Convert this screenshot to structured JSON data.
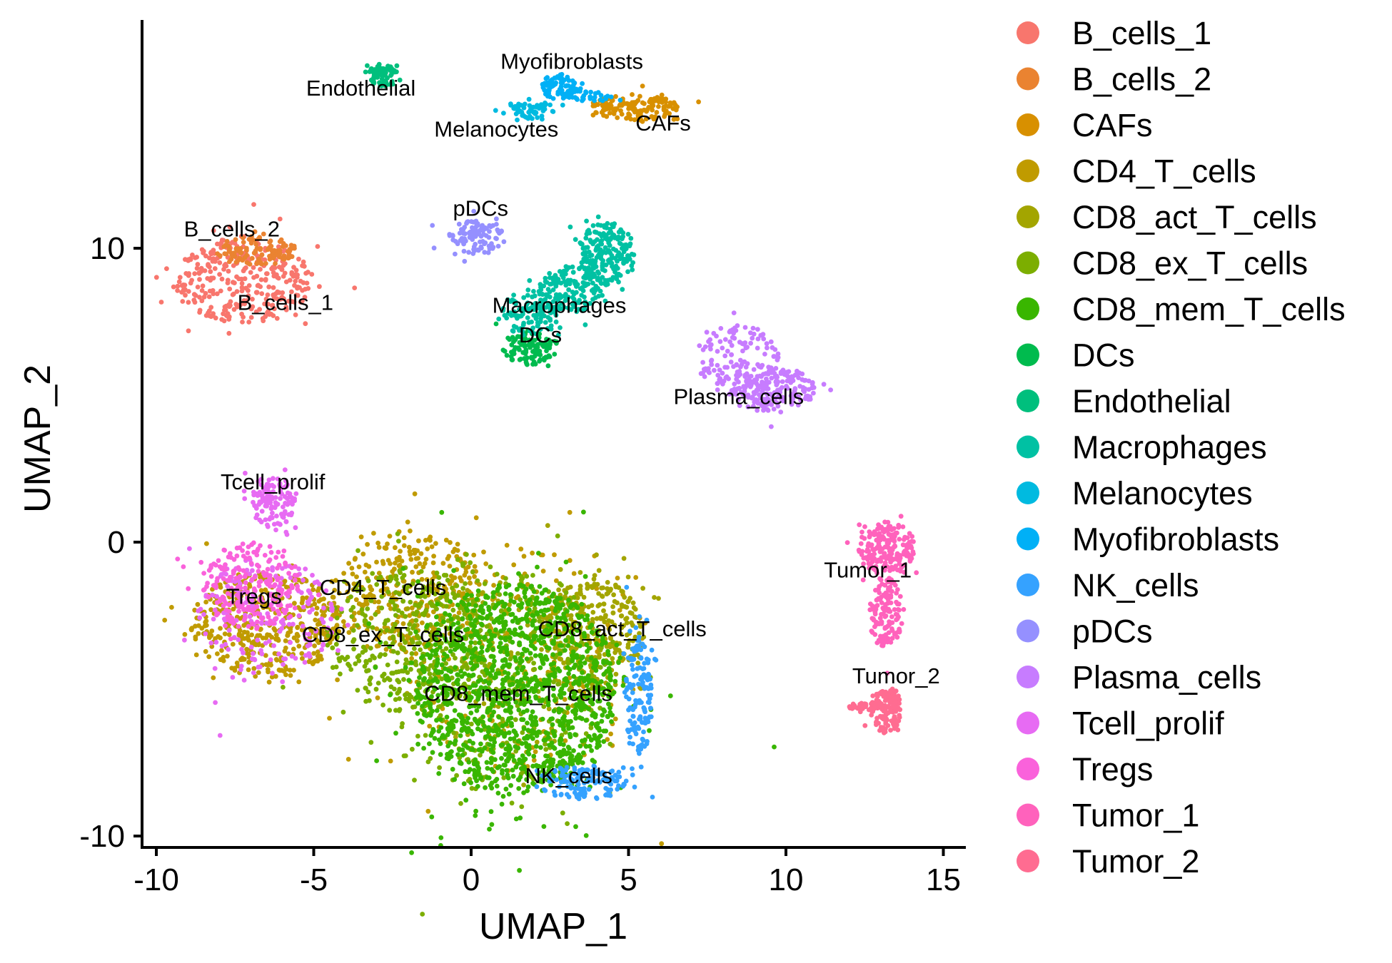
{
  "chart_data": {
    "type": "scatter",
    "xlabel": "UMAP_1",
    "ylabel": "UMAP_2",
    "xlim": [
      -10.5,
      15.8
    ],
    "ylim": [
      -10.4,
      17.7
    ],
    "x_ticks": [
      {
        "value": -10,
        "label": "-10"
      },
      {
        "value": -5,
        "label": "-5"
      },
      {
        "value": 0,
        "label": "0"
      },
      {
        "value": 5,
        "label": "5"
      },
      {
        "value": 10,
        "label": "10"
      },
      {
        "value": 15,
        "label": "15"
      }
    ],
    "y_ticks": [
      {
        "value": -10,
        "label": "-10"
      },
      {
        "value": 0,
        "label": "0"
      },
      {
        "value": 10,
        "label": "10"
      }
    ],
    "grid": false,
    "legend_position": "right",
    "series": [
      {
        "name": "B_cells_1",
        "color": "#F8766D",
        "label_pos": [
          -5.9,
          7.9
        ],
        "n": 340,
        "regions": [
          {
            "cx": -7.2,
            "cy": 8.9,
            "rx": 2.1,
            "ry": 1.5,
            "w": 1.0
          }
        ]
      },
      {
        "name": "B_cells_2",
        "color": "#EA8331",
        "label_pos": [
          -7.6,
          10.4
        ],
        "n": 110,
        "regions": [
          {
            "cx": -6.8,
            "cy": 9.9,
            "rx": 1.3,
            "ry": 0.5,
            "w": 1.0
          }
        ]
      },
      {
        "name": "CAFs",
        "color": "#D89000",
        "label_pos": [
          6.1,
          14.0
        ],
        "n": 160,
        "regions": [
          {
            "cx": 5.2,
            "cy": 14.8,
            "rx": 1.4,
            "ry": 0.45,
            "w": 1.0
          }
        ]
      },
      {
        "name": "CD4_T_cells",
        "color": "#C09B00",
        "label_pos": [
          -2.8,
          -1.8
        ],
        "n": 950,
        "regions": [
          {
            "cx": -6.5,
            "cy": -2.8,
            "rx": 2.4,
            "ry": 1.8,
            "w": 0.45
          },
          {
            "cx": -2.0,
            "cy": -1.8,
            "rx": 2.4,
            "ry": 2.2,
            "w": 0.35
          },
          {
            "cx": 1.8,
            "cy": -4.0,
            "rx": 3.8,
            "ry": 4.3,
            "w": 0.2
          }
        ]
      },
      {
        "name": "CD8_act_T_cells",
        "color": "#A3A500",
        "label_pos": [
          4.8,
          -3.2
        ],
        "n": 420,
        "regions": [
          {
            "cx": 3.8,
            "cy": -3.2,
            "rx": 1.7,
            "ry": 2.0,
            "w": 0.7
          },
          {
            "cx": 1.0,
            "cy": -4.5,
            "rx": 3.0,
            "ry": 3.2,
            "w": 0.3
          }
        ]
      },
      {
        "name": "CD8_ex_T_cells",
        "color": "#7CAE00",
        "label_pos": [
          -2.8,
          -3.4
        ],
        "n": 700,
        "regions": [
          {
            "cx": -2.0,
            "cy": -3.3,
            "rx": 2.6,
            "ry": 2.5,
            "w": 0.45
          },
          {
            "cx": 0.8,
            "cy": -4.5,
            "rx": 3.5,
            "ry": 4.0,
            "w": 0.55
          }
        ]
      },
      {
        "name": "CD8_mem_T_cells",
        "color": "#39B600",
        "label_pos": [
          1.5,
          -5.4
        ],
        "n": 1300,
        "regions": [
          {
            "cx": 1.4,
            "cy": -5.0,
            "rx": 3.2,
            "ry": 3.6,
            "w": 1.0
          }
        ]
      },
      {
        "name": "DCs",
        "color": "#00BB4E",
        "label_pos": [
          2.2,
          6.8
        ],
        "n": 110,
        "regions": [
          {
            "cx": 1.8,
            "cy": 6.6,
            "rx": 0.8,
            "ry": 0.6,
            "w": 1.0
          }
        ]
      },
      {
        "name": "Endothelial",
        "color": "#00BF7D",
        "label_pos": [
          -3.5,
          15.2
        ],
        "n": 70,
        "regions": [
          {
            "cx": -2.8,
            "cy": 15.9,
            "rx": 0.45,
            "ry": 0.4,
            "w": 1.0
          }
        ]
      },
      {
        "name": "Macrophages",
        "color": "#00C1A3",
        "label_pos": [
          2.8,
          7.8
        ],
        "n": 460,
        "regions": [
          {
            "cx": 4.3,
            "cy": 9.8,
            "rx": 0.9,
            "ry": 1.1,
            "w": 0.45
          },
          {
            "cx": 3.2,
            "cy": 8.6,
            "rx": 1.0,
            "ry": 0.8,
            "w": 0.3
          },
          {
            "cx": 1.9,
            "cy": 7.8,
            "rx": 0.9,
            "ry": 0.8,
            "w": 0.25
          }
        ]
      },
      {
        "name": "Melanocytes",
        "color": "#00BAE0",
        "label_pos": [
          0.8,
          13.8
        ],
        "n": 60,
        "regions": [
          {
            "cx": 2.0,
            "cy": 14.7,
            "rx": 0.7,
            "ry": 0.3,
            "w": 1.0
          }
        ]
      },
      {
        "name": "Myofibroblasts",
        "color": "#00B0F6",
        "label_pos": [
          3.2,
          16.1
        ],
        "n": 110,
        "regions": [
          {
            "cx": 2.8,
            "cy": 15.5,
            "rx": 0.55,
            "ry": 0.45,
            "w": 0.7
          },
          {
            "cx": 3.7,
            "cy": 15.2,
            "rx": 0.8,
            "ry": 0.25,
            "w": 0.3
          }
        ]
      },
      {
        "name": "NK_cells",
        "color": "#35A2FF",
        "label_pos": [
          3.1,
          -8.2
        ],
        "n": 280,
        "regions": [
          {
            "cx": 5.3,
            "cy": -5.3,
            "rx": 0.45,
            "ry": 2.0,
            "w": 0.5
          },
          {
            "cx": 3.6,
            "cy": -8.2,
            "rx": 1.5,
            "ry": 0.6,
            "w": 0.5
          }
        ]
      },
      {
        "name": "pDCs",
        "color": "#9590FF",
        "label_pos": [
          0.3,
          11.1
        ],
        "n": 110,
        "regions": [
          {
            "cx": 0.2,
            "cy": 10.4,
            "rx": 0.9,
            "ry": 0.6,
            "w": 1.0
          }
        ]
      },
      {
        "name": "Plasma_cells",
        "color": "#C77CFF",
        "label_pos": [
          8.5,
          4.7
        ],
        "n": 330,
        "regions": [
          {
            "cx": 8.5,
            "cy": 6.2,
            "rx": 1.3,
            "ry": 1.2,
            "w": 0.45
          },
          {
            "cx": 9.6,
            "cy": 5.2,
            "rx": 1.3,
            "ry": 0.8,
            "w": 0.55
          }
        ]
      },
      {
        "name": "Tcell_prolif",
        "color": "#E76BF3",
        "label_pos": [
          -6.3,
          1.8
        ],
        "n": 320,
        "regions": [
          {
            "cx": -6.3,
            "cy": 1.4,
            "rx": 0.7,
            "ry": 0.9,
            "w": 0.4
          },
          {
            "cx": -6.5,
            "cy": -2.5,
            "rx": 2.2,
            "ry": 2.0,
            "w": 0.6
          }
        ]
      },
      {
        "name": "Tregs",
        "color": "#FA62DB",
        "label_pos": [
          -6.9,
          -2.1
        ],
        "n": 220,
        "regions": [
          {
            "cx": -7.0,
            "cy": -1.5,
            "rx": 1.6,
            "ry": 1.5,
            "w": 1.0
          }
        ]
      },
      {
        "name": "Tumor_1",
        "color": "#FF62BC",
        "label_pos": [
          12.6,
          -1.2
        ],
        "n": 330,
        "regions": [
          {
            "cx": 13.2,
            "cy": -0.2,
            "rx": 0.9,
            "ry": 0.9,
            "w": 0.6
          },
          {
            "cx": 13.2,
            "cy": -2.4,
            "rx": 0.5,
            "ry": 1.2,
            "w": 0.4
          }
        ]
      },
      {
        "name": "Tumor_2",
        "color": "#FF6C91",
        "label_pos": [
          13.5,
          -4.8
        ],
        "n": 170,
        "regions": [
          {
            "cx": 13.2,
            "cy": -5.7,
            "rx": 0.5,
            "ry": 0.8,
            "w": 0.7
          },
          {
            "cx": 12.6,
            "cy": -5.6,
            "rx": 0.6,
            "ry": 0.15,
            "w": 0.3
          }
        ]
      }
    ]
  }
}
